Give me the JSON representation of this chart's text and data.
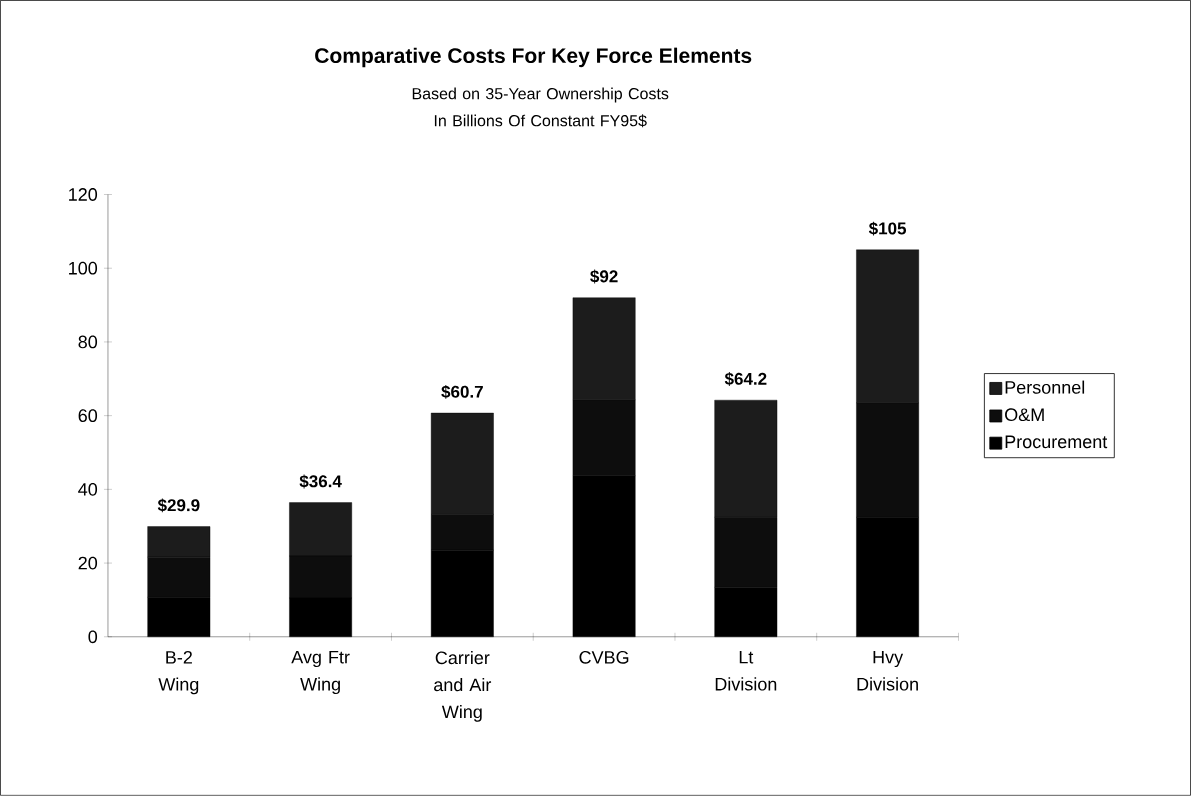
{
  "chart_data": {
    "type": "bar",
    "stacked": true,
    "title": "Comparative Costs For Key Force Elements",
    "subtitle": "Based on 35-Year Ownership Costs In Billions Of Constant FY95$",
    "categories": [
      "B-2 Wing",
      "Avg Ftr Wing",
      "Carrier and Air Wing",
      "CVBG",
      "Lt Division",
      "Hvy Division"
    ],
    "series": [
      {
        "name": "Procurement",
        "color": "#000000",
        "values": [
          10.7,
          10.5,
          23.5,
          43.7,
          13.4,
          32.4
        ]
      },
      {
        "name": "O&M",
        "color": "#0d0d0d",
        "values": [
          10.9,
          11.4,
          9.7,
          20.6,
          19.0,
          31.1
        ]
      },
      {
        "name": "Personnel",
        "color": "#1c1c1c",
        "values": [
          8.3,
          14.5,
          27.5,
          27.7,
          31.8,
          41.5
        ]
      }
    ],
    "totals": [
      "$29.9",
      "$36.4",
      "$60.7",
      "$92",
      "$64.2",
      "$105"
    ],
    "ylim": [
      0,
      120
    ],
    "yticks": [
      0,
      20,
      40,
      60,
      80,
      100,
      120
    ],
    "grid": false,
    "legend": "right"
  }
}
